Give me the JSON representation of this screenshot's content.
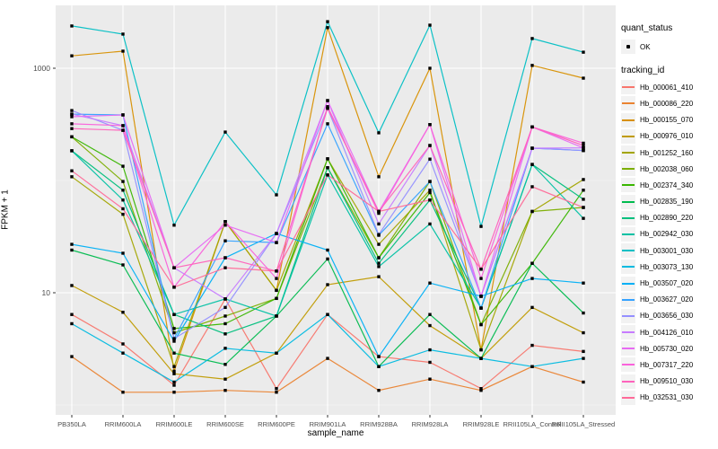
{
  "figure": {
    "x_axis_title": "sample_name",
    "y_axis_title": "FPKM + 1",
    "y_ticks": [
      {
        "label": "1000",
        "value": 1000
      },
      {
        "label": "10",
        "value": 10
      }
    ],
    "legend": {
      "quant_title": "quant_status",
      "quant_items": [
        {
          "label": "OK"
        }
      ],
      "tracking_title": "tracking_id"
    },
    "colors": {
      "panel_background": "#ebebeb",
      "grid_major": "#ffffff",
      "grid_minor": "#ffffff",
      "tick_text": "#4d4d4d",
      "point": "#000000",
      "legend_key_background": "#f2f2f2"
    }
  },
  "chart_data": {
    "type": "line",
    "title": "",
    "xlabel": "sample_name",
    "ylabel": "FPKM + 1",
    "y_scale": "log10",
    "ylim": [
      1,
      3500
    ],
    "grid": true,
    "legend_position": "right",
    "marker": "small-black-point",
    "categories": [
      "PB350LA",
      "RRIM600LA",
      "RRIM600LE",
      "RRIM600SE",
      "RRIM600PE",
      "RRIM901LA",
      "RRIM928BA",
      "RRIM928LA",
      "RRIM928LE",
      "RRII105LA_Control",
      "RRII105LA_Stressed"
    ],
    "series": [
      {
        "name": "Hb_000061_410",
        "color": "#F8766D",
        "values": [
          6.4,
          3.5,
          1.5,
          8.8,
          1.4,
          6.4,
          2.7,
          2.4,
          1.4,
          3.4,
          3.0
        ]
      },
      {
        "name": "Hb_000086_220",
        "color": "#EA8331",
        "values": [
          2.7,
          1.3,
          1.3,
          1.35,
          1.3,
          2.6,
          1.35,
          1.7,
          1.35,
          2.2,
          1.6
        ]
      },
      {
        "name": "Hb_000155_070",
        "color": "#D89000",
        "values": [
          1290,
          1420,
          2.0,
          43,
          10.5,
          2300,
          108,
          1000,
          3.1,
          1060,
          816
        ]
      },
      {
        "name": "Hb_000976_010",
        "color": "#C09B00",
        "values": [
          11.6,
          6.7,
          1.9,
          1.7,
          2.9,
          11.8,
          13.9,
          5.1,
          2.6,
          7.4,
          4.4
        ]
      },
      {
        "name": "Hb_001252_160",
        "color": "#A3A500",
        "values": [
          108,
          50,
          2.2,
          43,
          10.5,
          156,
          27,
          82,
          3.1,
          53,
          102
        ]
      },
      {
        "name": "Hb_002038_060",
        "color": "#7CAE00",
        "values": [
          245,
          98,
          4.4,
          6.2,
          8.9,
          130,
          20.5,
          98,
          5.2,
          53,
          57.5
        ]
      },
      {
        "name": "Hb_002374_340",
        "color": "#39B600",
        "values": [
          245,
          134,
          4.8,
          5.3,
          8.9,
          156,
          20.5,
          78,
          5.2,
          18.3,
          82
        ]
      },
      {
        "name": "Hb_002835_190",
        "color": "#00BB4E",
        "values": [
          24,
          17.7,
          2.9,
          2.3,
          6.2,
          20,
          2.2,
          6.4,
          2.6,
          18.3,
          6.6
        ]
      },
      {
        "name": "Hb_002890_220",
        "color": "#00BF7D",
        "values": [
          184,
          82,
          6.4,
          4.3,
          6.2,
          130,
          18.3,
          67,
          7.3,
          139,
          68
        ]
      },
      {
        "name": "Hb_002942_030",
        "color": "#00C1A3",
        "values": [
          184,
          67,
          6.4,
          8.8,
          6.2,
          112,
          17.1,
          41,
          7.3,
          139,
          46
        ]
      },
      {
        "name": "Hb_003001_030",
        "color": "#00BFC4",
        "values": [
          2380,
          2015,
          40,
          270,
          74.5,
          2600,
          266,
          2420,
          39,
          1840,
          1390
        ]
      },
      {
        "name": "Hb_003073_130",
        "color": "#00BAE0",
        "values": [
          5.3,
          2.9,
          1.6,
          3.2,
          2.9,
          6.4,
          2.2,
          3.1,
          2.6,
          2.2,
          2.6
        ]
      },
      {
        "name": "Hb_003507_020",
        "color": "#00B0F6",
        "values": [
          27,
          22.5,
          3.7,
          20.5,
          33.7,
          24,
          2.7,
          12.2,
          9.3,
          13.4,
          12.2
        ]
      },
      {
        "name": "Hb_003627_020",
        "color": "#35A2FF",
        "values": [
          390,
          384,
          3.9,
          29,
          28,
          320,
          32.5,
          98,
          7.3,
          194,
          185
        ]
      },
      {
        "name": "Hb_003656_030",
        "color": "#9590FF",
        "values": [
          420,
          280,
          3.9,
          7.4,
          33.7,
          440,
          33,
          155,
          9.3,
          194,
          185
        ]
      },
      {
        "name": "Hb_004126_010",
        "color": "#C77CFF",
        "values": [
          390,
          308,
          16.7,
          8.8,
          33.7,
          515,
          41,
          205,
          9.3,
          194,
          195
        ]
      },
      {
        "name": "Hb_005730_020",
        "color": "#E76BF3",
        "values": [
          370,
          384,
          16.7,
          40,
          28,
          515,
          53,
          315,
          9.3,
          300,
          195
        ]
      },
      {
        "name": "Hb_007317_220",
        "color": "#FA62DB",
        "values": [
          320,
          308,
          11.2,
          43,
          13.4,
          455,
          51,
          315,
          13.4,
          300,
          215
        ]
      },
      {
        "name": "Hb_009510_030",
        "color": "#FF62BC",
        "values": [
          290,
          280,
          16.7,
          20.5,
          15.6,
          440,
          53,
          205,
          16.2,
          300,
          205
        ]
      },
      {
        "name": "Hb_032531_030",
        "color": "#FF6A98",
        "values": [
          122,
          56,
          11.2,
          16.7,
          15.6,
          112,
          53,
          67,
          16.2,
          88,
          57.5
        ]
      }
    ]
  }
}
